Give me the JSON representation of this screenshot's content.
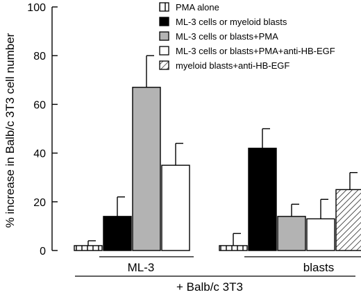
{
  "chart_data": {
    "type": "bar",
    "ylabel": "% increase in Balb/c  3T3 cell number",
    "ylim": [
      0,
      100
    ],
    "yticks": [
      0,
      20,
      40,
      60,
      80,
      100
    ],
    "groups": [
      "ML-3",
      "blasts"
    ],
    "xlabel": "+ Balb/c 3T3",
    "legend_position": "top-right",
    "series": [
      {
        "name": "PMA alone",
        "fill": "stripes-horizontal",
        "values": [
          2,
          2
        ],
        "errors": [
          2,
          5
        ]
      },
      {
        "name": "ML-3 cells or myeloid blasts",
        "fill": "#000000",
        "values": [
          14,
          42
        ],
        "errors": [
          8,
          8
        ]
      },
      {
        "name": "ML-3 cells or blasts+PMA",
        "fill": "#b3b3b3",
        "values": [
          67,
          14
        ],
        "errors": [
          13,
          5
        ]
      },
      {
        "name": "ML-3 cells or blasts+PMA+anti-HB-EGF",
        "fill": "#ffffff",
        "values": [
          35,
          13
        ],
        "errors": [
          9,
          8
        ]
      },
      {
        "name": "myeloid blasts+anti-HB-EGF",
        "fill": "hatch-diagonal",
        "values": [
          null,
          25
        ],
        "errors": [
          null,
          7
        ]
      }
    ]
  }
}
